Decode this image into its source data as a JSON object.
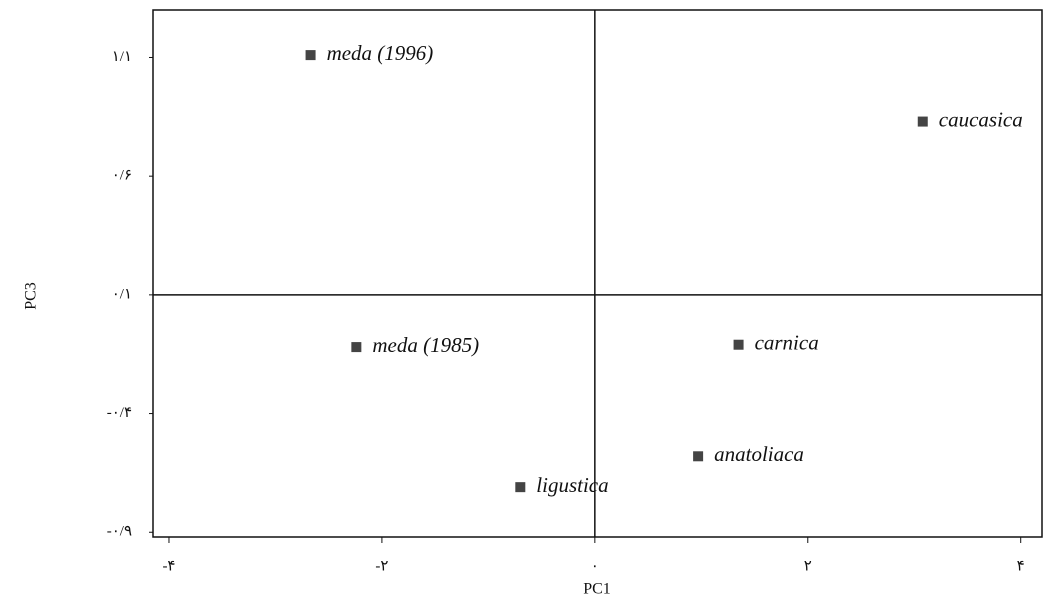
{
  "chart_data": {
    "type": "scatter",
    "x_label": "PC1",
    "y_label": "PC3",
    "series": [
      {
        "name": null,
        "color": "#444444",
        "labels": [
          "meda (1996)",
          "caucasica",
          "meda (1985)",
          "carnica",
          "anatoliaca",
          "ligustica"
        ],
        "x": [
          -2.67,
          3.08,
          -2.24,
          1.35,
          0.97,
          -0.7
        ],
        "values": [
          1.11,
          0.83,
          -0.12,
          -0.11,
          -0.58,
          -0.71
        ]
      }
    ],
    "xlim": [
      -4.15,
      4.2
    ],
    "xticks": [
      {
        "value": -4,
        "label": "-۴"
      },
      {
        "value": -2,
        "label": "-۲"
      },
      {
        "value": 0,
        "label": "٠"
      },
      {
        "value": 2,
        "label": "۲"
      },
      {
        "value": 4,
        "label": "۴"
      }
    ],
    "ylim": [
      -0.92,
      1.3
    ],
    "yticks": [
      {
        "value": 1.1,
        "label": "۱/۱"
      },
      {
        "value": 0.6,
        "label": "۰/۶"
      },
      {
        "value": 0.1,
        "label": "۰/۱"
      },
      {
        "value": -0.4,
        "label": "-۰/۴"
      },
      {
        "value": -0.9,
        "label": "-۰/۹"
      }
    ]
  }
}
